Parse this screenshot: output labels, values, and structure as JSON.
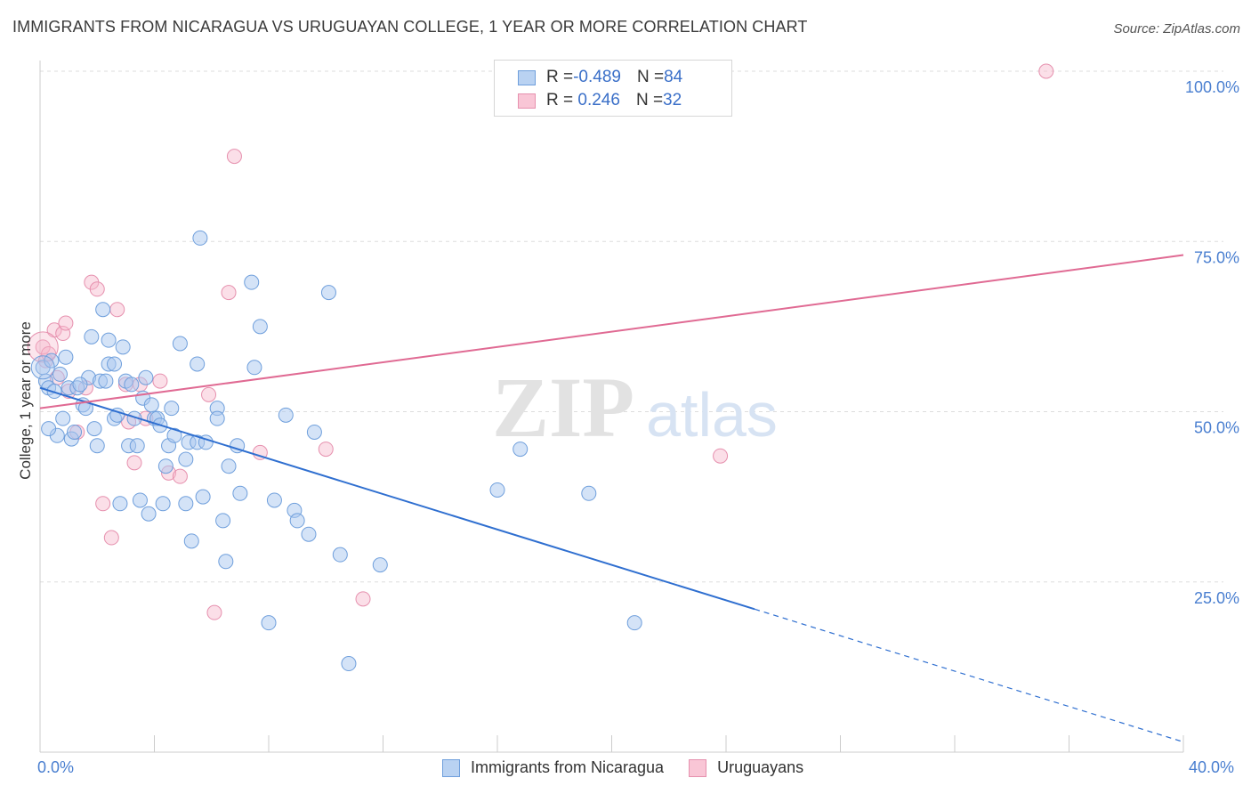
{
  "title": "IMMIGRANTS FROM NICARAGUA VS URUGUAYAN COLLEGE, 1 YEAR OR MORE CORRELATION CHART",
  "source": "Source: ZipAtlas.com",
  "watermark": {
    "zip": "ZIP",
    "atlas": "atlas"
  },
  "legend": {
    "rows": [
      {
        "r_label": "R = ",
        "r_value": "-0.489",
        "n_label": "N = ",
        "n_value": "84"
      },
      {
        "r_label": "R = ",
        "r_value": " 0.246",
        "n_label": "N = ",
        "n_value": "32"
      }
    ]
  },
  "bottom_legend": [
    "Immigrants from Nicaragua",
    "Uruguayans"
  ],
  "colors": {
    "blue_fill": "#a9c7ef",
    "blue_stroke": "#6f9fdc",
    "blue_line": "#2f6fd0",
    "pink_fill": "#f6b8cc",
    "pink_stroke": "#e690ae",
    "pink_line": "#e06a93",
    "tick_text": "#4a7fd0",
    "grid": "#dddddd"
  },
  "chart_data": {
    "type": "scatter",
    "title": "IMMIGRANTS FROM NICARAGUA VS URUGUAYAN COLLEGE, 1 YEAR OR MORE CORRELATION CHART",
    "xlabel": "",
    "ylabel": "College, 1 year or more",
    "xlim": [
      0,
      40
    ],
    "ylim": [
      0,
      100
    ],
    "x_tick_labels": [
      "0.0%",
      "40.0%"
    ],
    "y_tick_labels": [
      "25.0%",
      "50.0%",
      "75.0%",
      "100.0%"
    ],
    "y_ticks": [
      25,
      50,
      75,
      100
    ],
    "grid": true,
    "legend_position": "top-center",
    "series": [
      {
        "name": "Immigrants from Nicaragua",
        "R": -0.489,
        "N": 84,
        "trend": {
          "x0": 0,
          "y0": 53.5,
          "x1": 25.0,
          "y1": 21.0,
          "dashed_to_x": 40.0,
          "dashed_to_y": 1.5
        },
        "points": [
          [
            0.1,
            56.5
          ],
          [
            0.2,
            54.5
          ],
          [
            0.3,
            53.5
          ],
          [
            0.4,
            57.5
          ],
          [
            0.5,
            53.0
          ],
          [
            0.6,
            46.5
          ],
          [
            0.7,
            55.5
          ],
          [
            0.8,
            49.0
          ],
          [
            0.9,
            58.0
          ],
          [
            1.0,
            53.5
          ],
          [
            1.1,
            46.0
          ],
          [
            1.2,
            47.0
          ],
          [
            1.3,
            53.5
          ],
          [
            1.5,
            51.0
          ],
          [
            1.6,
            50.5
          ],
          [
            1.7,
            55.0
          ],
          [
            1.8,
            61.0
          ],
          [
            1.9,
            47.5
          ],
          [
            2.0,
            45.0
          ],
          [
            2.1,
            54.5
          ],
          [
            2.2,
            65.0
          ],
          [
            2.3,
            54.5
          ],
          [
            2.4,
            57.0
          ],
          [
            2.4,
            60.5
          ],
          [
            2.6,
            57.0
          ],
          [
            2.6,
            49.0
          ],
          [
            2.7,
            49.5
          ],
          [
            2.8,
            36.5
          ],
          [
            2.9,
            59.5
          ],
          [
            3.0,
            54.5
          ],
          [
            3.1,
            45.0
          ],
          [
            3.2,
            54.0
          ],
          [
            3.3,
            49.0
          ],
          [
            3.4,
            45.0
          ],
          [
            3.5,
            37.0
          ],
          [
            3.6,
            52.0
          ],
          [
            3.7,
            55.0
          ],
          [
            3.8,
            35.0
          ],
          [
            3.9,
            51.0
          ],
          [
            4.0,
            49.0
          ],
          [
            4.1,
            49.0
          ],
          [
            4.3,
            36.5
          ],
          [
            4.4,
            42.0
          ],
          [
            4.5,
            45.0
          ],
          [
            4.6,
            50.5
          ],
          [
            4.7,
            46.5
          ],
          [
            4.9,
            60.0
          ],
          [
            5.1,
            36.5
          ],
          [
            5.1,
            43.0
          ],
          [
            5.2,
            45.5
          ],
          [
            5.3,
            31.0
          ],
          [
            5.5,
            45.5
          ],
          [
            5.5,
            57.0
          ],
          [
            5.7,
            37.5
          ],
          [
            5.6,
            75.5
          ],
          [
            5.8,
            45.5
          ],
          [
            6.2,
            50.5
          ],
          [
            6.2,
            49.0
          ],
          [
            6.4,
            34.0
          ],
          [
            6.5,
            28.0
          ],
          [
            6.6,
            42.0
          ],
          [
            6.9,
            45.0
          ],
          [
            7.0,
            38.0
          ],
          [
            7.4,
            69.0
          ],
          [
            7.5,
            56.5
          ],
          [
            7.7,
            62.5
          ],
          [
            8.0,
            19.0
          ],
          [
            8.2,
            37.0
          ],
          [
            8.6,
            49.5
          ],
          [
            8.9,
            35.5
          ],
          [
            9.0,
            34.0
          ],
          [
            9.4,
            32.0
          ],
          [
            9.6,
            47.0
          ],
          [
            10.1,
            67.5
          ],
          [
            10.5,
            29.0
          ],
          [
            10.8,
            13.0
          ],
          [
            11.9,
            27.5
          ],
          [
            16.0,
            38.5
          ],
          [
            16.8,
            44.5
          ],
          [
            19.2,
            38.0
          ],
          [
            20.8,
            19.0
          ],
          [
            0.3,
            47.5
          ],
          [
            1.4,
            54.0
          ],
          [
            4.2,
            48.0
          ]
        ]
      },
      {
        "name": "Uruguayans",
        "R": 0.246,
        "N": 32,
        "trend": {
          "x0": 0,
          "y0": 50.5,
          "x1": 40.0,
          "y1": 73.0
        },
        "points": [
          [
            0.1,
            59.5
          ],
          [
            0.2,
            57.5
          ],
          [
            0.3,
            58.5
          ],
          [
            0.5,
            62.0
          ],
          [
            0.8,
            61.5
          ],
          [
            0.9,
            63.0
          ],
          [
            1.0,
            53.0
          ],
          [
            1.3,
            47.0
          ],
          [
            1.6,
            53.5
          ],
          [
            1.8,
            69.0
          ],
          [
            2.0,
            68.0
          ],
          [
            2.2,
            36.5
          ],
          [
            2.5,
            31.5
          ],
          [
            2.7,
            65.0
          ],
          [
            3.0,
            54.0
          ],
          [
            3.3,
            42.5
          ],
          [
            3.5,
            54.0
          ],
          [
            3.7,
            49.0
          ],
          [
            4.2,
            54.5
          ],
          [
            4.5,
            41.0
          ],
          [
            4.9,
            40.5
          ],
          [
            5.9,
            52.5
          ],
          [
            6.1,
            20.5
          ],
          [
            6.6,
            67.5
          ],
          [
            6.8,
            87.5
          ],
          [
            7.7,
            44.0
          ],
          [
            10.0,
            44.5
          ],
          [
            11.3,
            22.5
          ],
          [
            23.8,
            43.5
          ],
          [
            35.2,
            100.0
          ],
          [
            3.1,
            48.5
          ],
          [
            0.6,
            55.0
          ]
        ]
      }
    ]
  }
}
